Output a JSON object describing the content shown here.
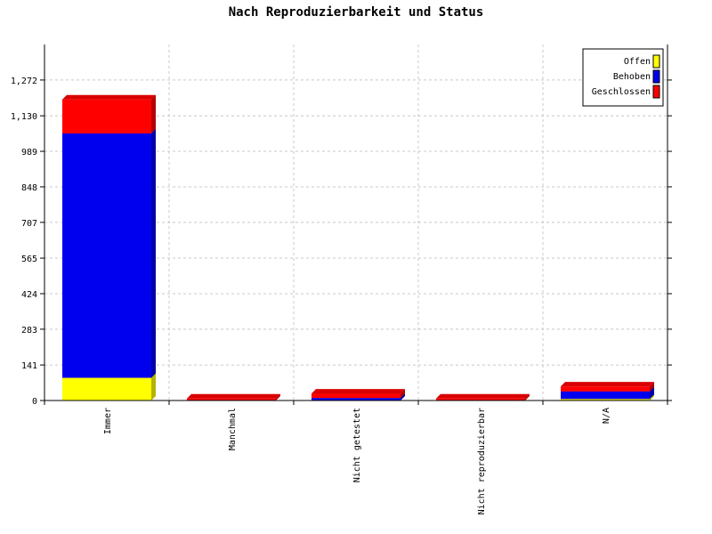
{
  "chart_data": {
    "type": "bar",
    "stacked": true,
    "three_d": true,
    "title": "Nach Reproduzierbarkeit und Status",
    "xlabel": "",
    "ylabel": "",
    "categories": [
      "Immer",
      "Manchmal",
      "Nicht getestet",
      "Nicht reproduzierbar",
      "N/A"
    ],
    "ylim": [
      0,
      1413
    ],
    "yticks": [
      "0",
      "141",
      "283",
      "424",
      "565",
      "707",
      "848",
      "989",
      "1,130",
      "1,272"
    ],
    "ytick_values": [
      0,
      141,
      283,
      424,
      565,
      707,
      848,
      989,
      1130,
      1272
    ],
    "grid": true,
    "legend_position": "top-right",
    "series": [
      {
        "name": "Offen",
        "color": "#ffff00",
        "values": [
          90,
          0,
          0,
          0,
          6
        ]
      },
      {
        "name": "Behoben",
        "color": "#0000ee",
        "values": [
          970,
          0,
          10,
          0,
          30
        ]
      },
      {
        "name": "Geschlossen",
        "color": "#ff0000",
        "values": [
          135,
          8,
          18,
          8,
          20
        ]
      }
    ]
  }
}
